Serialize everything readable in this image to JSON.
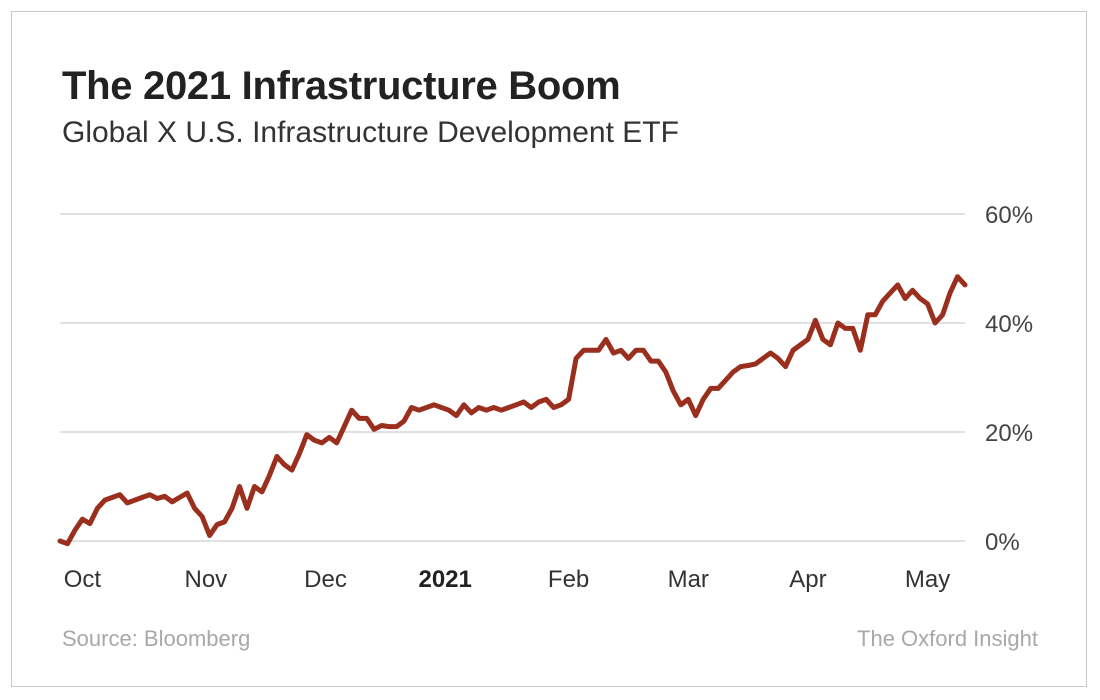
{
  "chart_data": {
    "type": "line",
    "title": "The 2021 Infrastructure Boom",
    "subtitle": "Global X U.S. Infrastructure Development ETF",
    "xlabel": "",
    "ylabel": "",
    "ylim": [
      0,
      60
    ],
    "y_ticks": [
      {
        "value": 0,
        "label": "0%"
      },
      {
        "value": 20,
        "label": "20%"
      },
      {
        "value": 40,
        "label": "40%"
      },
      {
        "value": 60,
        "label": "60%"
      }
    ],
    "x_ticks": [
      {
        "t": 3,
        "label": "Oct",
        "bold": false
      },
      {
        "t": 19.5,
        "label": "Nov",
        "bold": false
      },
      {
        "t": 35.5,
        "label": "Dec",
        "bold": false
      },
      {
        "t": 51.5,
        "label": "2021",
        "bold": true
      },
      {
        "t": 68,
        "label": "Feb",
        "bold": false
      },
      {
        "t": 84,
        "label": "Mar",
        "bold": false
      },
      {
        "t": 100,
        "label": "Apr",
        "bold": false
      },
      {
        "t": 116,
        "label": "May",
        "bold": false
      }
    ],
    "x_range": [
      0,
      121
    ],
    "series": [
      {
        "name": "Global X U.S. Infrastructure Development ETF",
        "color": "#9a2f1e",
        "points": [
          [
            0,
            0
          ],
          [
            1,
            -0.5
          ],
          [
            2,
            2
          ],
          [
            3,
            4
          ],
          [
            4,
            3.2
          ],
          [
            5,
            6
          ],
          [
            6,
            7.5
          ],
          [
            7,
            8
          ],
          [
            8,
            8.5
          ],
          [
            9,
            7
          ],
          [
            10,
            7.5
          ],
          [
            11,
            8
          ],
          [
            12,
            8.5
          ],
          [
            13,
            7.8
          ],
          [
            14,
            8.2
          ],
          [
            15,
            7.2
          ],
          [
            16,
            8
          ],
          [
            17,
            8.8
          ],
          [
            18,
            6
          ],
          [
            19,
            4.5
          ],
          [
            20,
            1
          ],
          [
            21,
            3
          ],
          [
            22,
            3.5
          ],
          [
            23,
            6
          ],
          [
            24,
            10
          ],
          [
            25,
            6
          ],
          [
            26,
            10
          ],
          [
            27,
            9
          ],
          [
            28,
            12
          ],
          [
            29,
            15.5
          ],
          [
            30,
            14
          ],
          [
            31,
            13
          ],
          [
            32,
            16
          ],
          [
            33,
            19.5
          ],
          [
            34,
            18.5
          ],
          [
            35,
            18
          ],
          [
            36,
            19
          ],
          [
            37,
            18
          ],
          [
            38,
            21
          ],
          [
            39,
            24
          ],
          [
            40,
            22.5
          ],
          [
            41,
            22.5
          ],
          [
            42,
            20.5
          ],
          [
            43,
            21.2
          ],
          [
            44,
            21
          ],
          [
            45,
            21
          ],
          [
            46,
            22
          ],
          [
            47,
            24.5
          ],
          [
            48,
            24
          ],
          [
            49,
            24.5
          ],
          [
            50,
            25
          ],
          [
            51,
            24.5
          ],
          [
            52,
            24
          ],
          [
            53,
            23
          ],
          [
            54,
            25
          ],
          [
            55,
            23.5
          ],
          [
            56,
            24.5
          ],
          [
            57,
            24
          ],
          [
            58,
            24.5
          ],
          [
            59,
            24
          ],
          [
            60,
            24.5
          ],
          [
            61,
            25
          ],
          [
            62,
            25.5
          ],
          [
            63,
            24.5
          ],
          [
            64,
            25.5
          ],
          [
            65,
            26
          ],
          [
            66,
            24.5
          ],
          [
            67,
            25
          ],
          [
            68,
            26
          ],
          [
            69,
            33.5
          ],
          [
            70,
            35
          ],
          [
            71,
            35
          ],
          [
            72,
            35
          ],
          [
            73,
            37
          ],
          [
            74,
            34.5
          ],
          [
            75,
            35
          ],
          [
            76,
            33.5
          ],
          [
            77,
            35
          ],
          [
            78,
            35
          ],
          [
            79,
            33
          ],
          [
            80,
            33
          ],
          [
            81,
            31
          ],
          [
            82,
            27.5
          ],
          [
            83,
            25
          ],
          [
            84,
            26
          ],
          [
            85,
            23
          ],
          [
            86,
            26
          ],
          [
            87,
            28
          ],
          [
            88,
            28
          ],
          [
            89,
            29.5
          ],
          [
            90,
            31
          ],
          [
            91,
            32
          ],
          [
            92,
            32.2
          ],
          [
            93,
            32.5
          ],
          [
            94,
            33.5
          ],
          [
            95,
            34.5
          ],
          [
            96,
            33.5
          ],
          [
            97,
            32
          ],
          [
            98,
            35
          ],
          [
            99,
            36
          ],
          [
            100,
            37
          ],
          [
            101,
            40.5
          ],
          [
            102,
            37
          ],
          [
            103,
            36
          ],
          [
            104,
            40
          ],
          [
            105,
            39
          ],
          [
            106,
            39
          ],
          [
            107,
            35
          ],
          [
            108,
            41.5
          ],
          [
            109,
            41.5
          ],
          [
            110,
            44
          ],
          [
            111,
            45.5
          ],
          [
            112,
            47
          ],
          [
            113,
            44.5
          ],
          [
            114,
            46
          ],
          [
            115,
            44.5
          ],
          [
            116,
            43.5
          ],
          [
            117,
            40
          ],
          [
            118,
            41.5
          ],
          [
            119,
            45.5
          ],
          [
            120,
            48.5
          ],
          [
            121,
            47
          ]
        ]
      }
    ],
    "source": "Source: Bloomberg",
    "brand": "The Oxford Insight"
  }
}
